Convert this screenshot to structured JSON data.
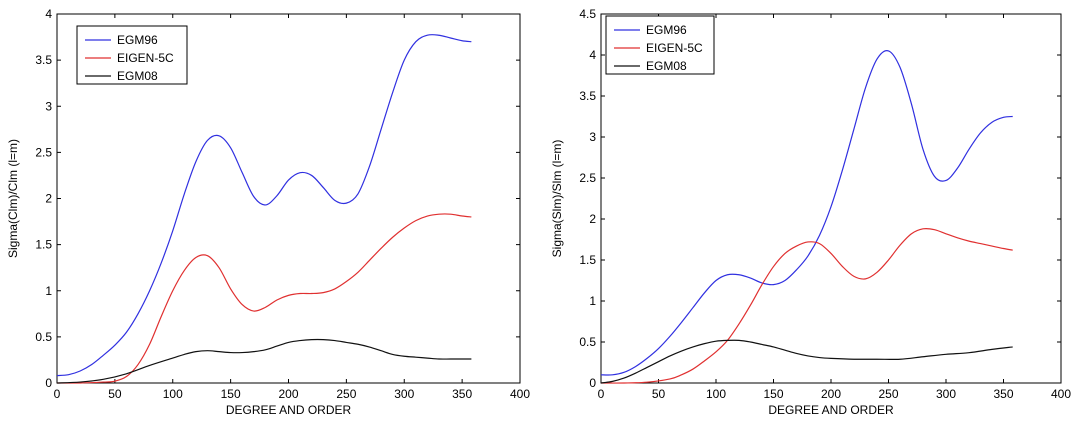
{
  "chart_data": [
    {
      "type": "line",
      "title": "",
      "xlabel": "DEGREE AND ORDER",
      "ylabel": "Sigma(Clm)/Clm  (l=m)",
      "xlim": [
        0,
        400
      ],
      "ylim": [
        0,
        4
      ],
      "xticks": [
        "0",
        "50",
        "100",
        "150",
        "200",
        "250",
        "300",
        "350",
        "400"
      ],
      "yticks": [
        "0",
        "0.5",
        "1",
        "1.5",
        "2",
        "2.5",
        "3",
        "3.5",
        "4"
      ],
      "grid": false,
      "legend_position": "top-left",
      "series": [
        {
          "name": "EGM96",
          "color": "#3030e0",
          "x": [
            0,
            10,
            20,
            30,
            40,
            50,
            60,
            70,
            80,
            90,
            100,
            110,
            120,
            130,
            140,
            150,
            160,
            170,
            180,
            190,
            200,
            210,
            220,
            230,
            240,
            250,
            260,
            270,
            280,
            290,
            300,
            310,
            320,
            330,
            340,
            350,
            358
          ],
          "y": [
            0.08,
            0.09,
            0.13,
            0.2,
            0.3,
            0.41,
            0.55,
            0.75,
            1.0,
            1.3,
            1.65,
            2.05,
            2.4,
            2.63,
            2.68,
            2.55,
            2.28,
            2.02,
            1.93,
            2.03,
            2.2,
            2.28,
            2.25,
            2.12,
            1.98,
            1.95,
            2.05,
            2.35,
            2.75,
            3.15,
            3.5,
            3.7,
            3.77,
            3.77,
            3.74,
            3.71,
            3.7
          ]
        },
        {
          "name": "EIGEN-5C",
          "color": "#e03030",
          "x": [
            0,
            20,
            40,
            50,
            60,
            70,
            80,
            90,
            100,
            110,
            120,
            130,
            140,
            150,
            160,
            170,
            180,
            190,
            200,
            210,
            220,
            230,
            240,
            250,
            260,
            270,
            280,
            290,
            300,
            310,
            320,
            330,
            340,
            350,
            358
          ],
          "y": [
            0.0,
            0.0,
            0.01,
            0.02,
            0.07,
            0.2,
            0.42,
            0.72,
            1.0,
            1.22,
            1.36,
            1.38,
            1.25,
            1.02,
            0.85,
            0.78,
            0.82,
            0.9,
            0.95,
            0.97,
            0.97,
            0.98,
            1.02,
            1.1,
            1.2,
            1.33,
            1.46,
            1.58,
            1.68,
            1.76,
            1.81,
            1.83,
            1.83,
            1.81,
            1.8
          ]
        },
        {
          "name": "EGM08",
          "color": "#111111",
          "x": [
            0,
            20,
            40,
            60,
            80,
            100,
            110,
            120,
            130,
            140,
            150,
            160,
            170,
            180,
            190,
            200,
            210,
            220,
            230,
            240,
            250,
            260,
            270,
            280,
            290,
            300,
            310,
            320,
            330,
            340,
            350,
            358
          ],
          "y": [
            0.0,
            0.01,
            0.04,
            0.1,
            0.19,
            0.27,
            0.31,
            0.34,
            0.35,
            0.34,
            0.33,
            0.33,
            0.34,
            0.36,
            0.4,
            0.44,
            0.46,
            0.47,
            0.47,
            0.46,
            0.44,
            0.42,
            0.39,
            0.35,
            0.31,
            0.29,
            0.28,
            0.27,
            0.26,
            0.26,
            0.26,
            0.26
          ]
        }
      ]
    },
    {
      "type": "line",
      "title": "",
      "xlabel": "DEGREE AND ORDER",
      "ylabel": "Sigma(Slm)/Slm  (l=m)",
      "xlim": [
        0,
        400
      ],
      "ylim": [
        0,
        4.5
      ],
      "xticks": [
        "0",
        "50",
        "100",
        "150",
        "200",
        "250",
        "300",
        "350",
        "400"
      ],
      "yticks": [
        "0",
        "0.5",
        "1",
        "1.5",
        "2",
        "2.5",
        "3",
        "3.5",
        "4",
        "4.5"
      ],
      "grid": false,
      "legend_position": "top-left",
      "series": [
        {
          "name": "EGM96",
          "color": "#3030e0",
          "x": [
            0,
            10,
            20,
            30,
            40,
            50,
            60,
            70,
            80,
            90,
            100,
            110,
            120,
            130,
            140,
            150,
            160,
            170,
            180,
            190,
            200,
            210,
            220,
            230,
            240,
            250,
            260,
            270,
            280,
            290,
            300,
            310,
            320,
            330,
            340,
            350,
            358
          ],
          "y": [
            0.1,
            0.1,
            0.13,
            0.2,
            0.3,
            0.42,
            0.57,
            0.74,
            0.92,
            1.1,
            1.25,
            1.32,
            1.32,
            1.28,
            1.22,
            1.2,
            1.25,
            1.38,
            1.55,
            1.8,
            2.15,
            2.6,
            3.1,
            3.6,
            3.95,
            4.05,
            3.85,
            3.4,
            2.85,
            2.52,
            2.47,
            2.62,
            2.85,
            3.05,
            3.18,
            3.24,
            3.25
          ]
        },
        {
          "name": "EIGEN-5C",
          "color": "#e03030",
          "x": [
            0,
            20,
            40,
            60,
            70,
            80,
            90,
            100,
            110,
            120,
            130,
            140,
            150,
            160,
            170,
            180,
            190,
            200,
            210,
            220,
            230,
            240,
            250,
            260,
            270,
            280,
            290,
            300,
            310,
            320,
            330,
            340,
            350,
            358
          ],
          "y": [
            0.0,
            0.0,
            0.01,
            0.05,
            0.1,
            0.17,
            0.27,
            0.38,
            0.52,
            0.72,
            0.95,
            1.2,
            1.42,
            1.58,
            1.67,
            1.72,
            1.7,
            1.58,
            1.42,
            1.3,
            1.27,
            1.35,
            1.5,
            1.68,
            1.82,
            1.88,
            1.87,
            1.82,
            1.77,
            1.73,
            1.7,
            1.67,
            1.64,
            1.62
          ]
        },
        {
          "name": "EGM08",
          "color": "#111111",
          "x": [
            0,
            10,
            20,
            30,
            40,
            50,
            60,
            70,
            80,
            90,
            100,
            110,
            120,
            130,
            140,
            150,
            160,
            170,
            180,
            190,
            200,
            220,
            240,
            260,
            280,
            300,
            320,
            340,
            358
          ],
          "y": [
            0.0,
            0.02,
            0.06,
            0.12,
            0.19,
            0.26,
            0.33,
            0.39,
            0.44,
            0.48,
            0.51,
            0.52,
            0.52,
            0.5,
            0.47,
            0.44,
            0.4,
            0.36,
            0.33,
            0.31,
            0.3,
            0.29,
            0.29,
            0.29,
            0.32,
            0.35,
            0.37,
            0.41,
            0.44
          ]
        }
      ]
    }
  ]
}
